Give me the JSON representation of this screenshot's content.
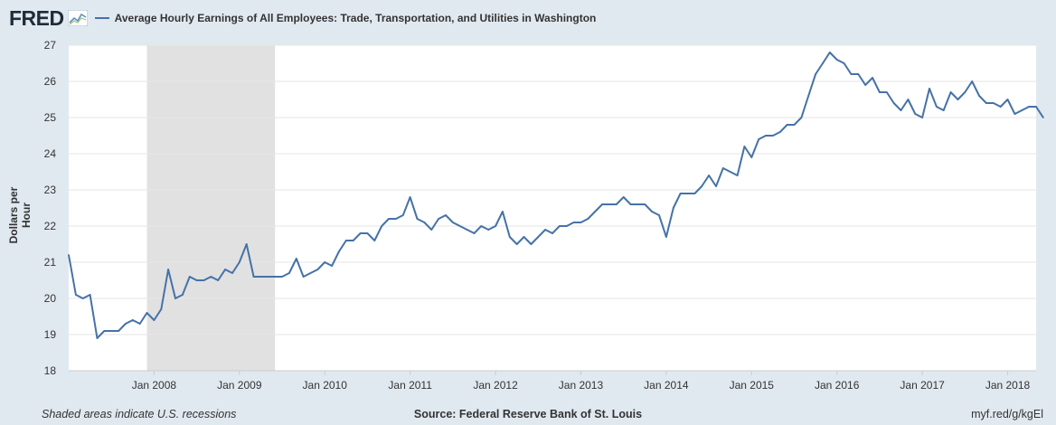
{
  "header": {
    "logo_text": "FRED",
    "legend_label": "Average Hourly Earnings of All Employees: Trade, Transportation, and Utilities in Washington"
  },
  "footer": {
    "recession_note": "Shaded areas indicate U.S. recessions",
    "source": "Source: Federal Reserve Bank of St. Louis",
    "short_url": "myf.red/g/kgEl"
  },
  "chart_data": {
    "type": "line",
    "ylabel": "Dollars per Hour",
    "ylim": [
      18,
      27
    ],
    "yticks": [
      18,
      19,
      20,
      21,
      22,
      23,
      24,
      25,
      26,
      27
    ],
    "xlim": [
      "2007-01",
      "2018-05"
    ],
    "xticks": [
      "Jan 2008",
      "Jan 2009",
      "Jan 2010",
      "Jan 2011",
      "Jan 2012",
      "Jan 2013",
      "Jan 2014",
      "Jan 2015",
      "Jan 2016",
      "Jan 2017",
      "Jan 2018"
    ],
    "recession_shading": [
      "2007-12",
      "2009-06"
    ],
    "grid": "horizontal",
    "line_color": "#4572a7",
    "series": [
      {
        "start": "2007-01",
        "frequency": "monthly",
        "values": [
          21.2,
          20.1,
          20.0,
          20.1,
          18.9,
          19.1,
          19.1,
          19.1,
          19.3,
          19.4,
          19.3,
          19.6,
          19.4,
          19.7,
          20.8,
          20.0,
          20.1,
          20.6,
          20.5,
          20.5,
          20.6,
          20.5,
          20.8,
          20.7,
          21.0,
          21.5,
          20.6,
          20.6,
          20.6,
          20.6,
          20.6,
          20.7,
          21.1,
          20.6,
          20.7,
          20.8,
          21.0,
          20.9,
          21.3,
          21.6,
          21.6,
          21.8,
          21.8,
          21.6,
          22.0,
          22.2,
          22.2,
          22.3,
          22.8,
          22.2,
          22.1,
          21.9,
          22.2,
          22.3,
          22.1,
          22.0,
          21.9,
          21.8,
          22.0,
          21.9,
          22.0,
          22.4,
          21.7,
          21.5,
          21.7,
          21.5,
          21.7,
          21.9,
          21.8,
          22.0,
          22.0,
          22.1,
          22.1,
          22.2,
          22.4,
          22.6,
          22.6,
          22.6,
          22.8,
          22.6,
          22.6,
          22.6,
          22.4,
          22.3,
          21.7,
          22.5,
          22.9,
          22.9,
          22.9,
          23.1,
          23.4,
          23.1,
          23.6,
          23.5,
          23.4,
          24.2,
          23.9,
          24.4,
          24.5,
          24.5,
          24.6,
          24.8,
          24.8,
          25.0,
          25.6,
          26.2,
          26.5,
          26.8,
          26.6,
          26.5,
          26.2,
          26.2,
          25.9,
          26.1,
          25.7,
          25.7,
          25.4,
          25.2,
          25.5,
          25.1,
          25.0,
          25.8,
          25.3,
          25.2,
          25.7,
          25.5,
          25.7,
          26.0,
          25.6,
          25.4,
          25.4,
          25.3,
          25.5,
          25.1,
          25.2,
          25.3,
          25.3,
          25.0
        ]
      }
    ]
  }
}
